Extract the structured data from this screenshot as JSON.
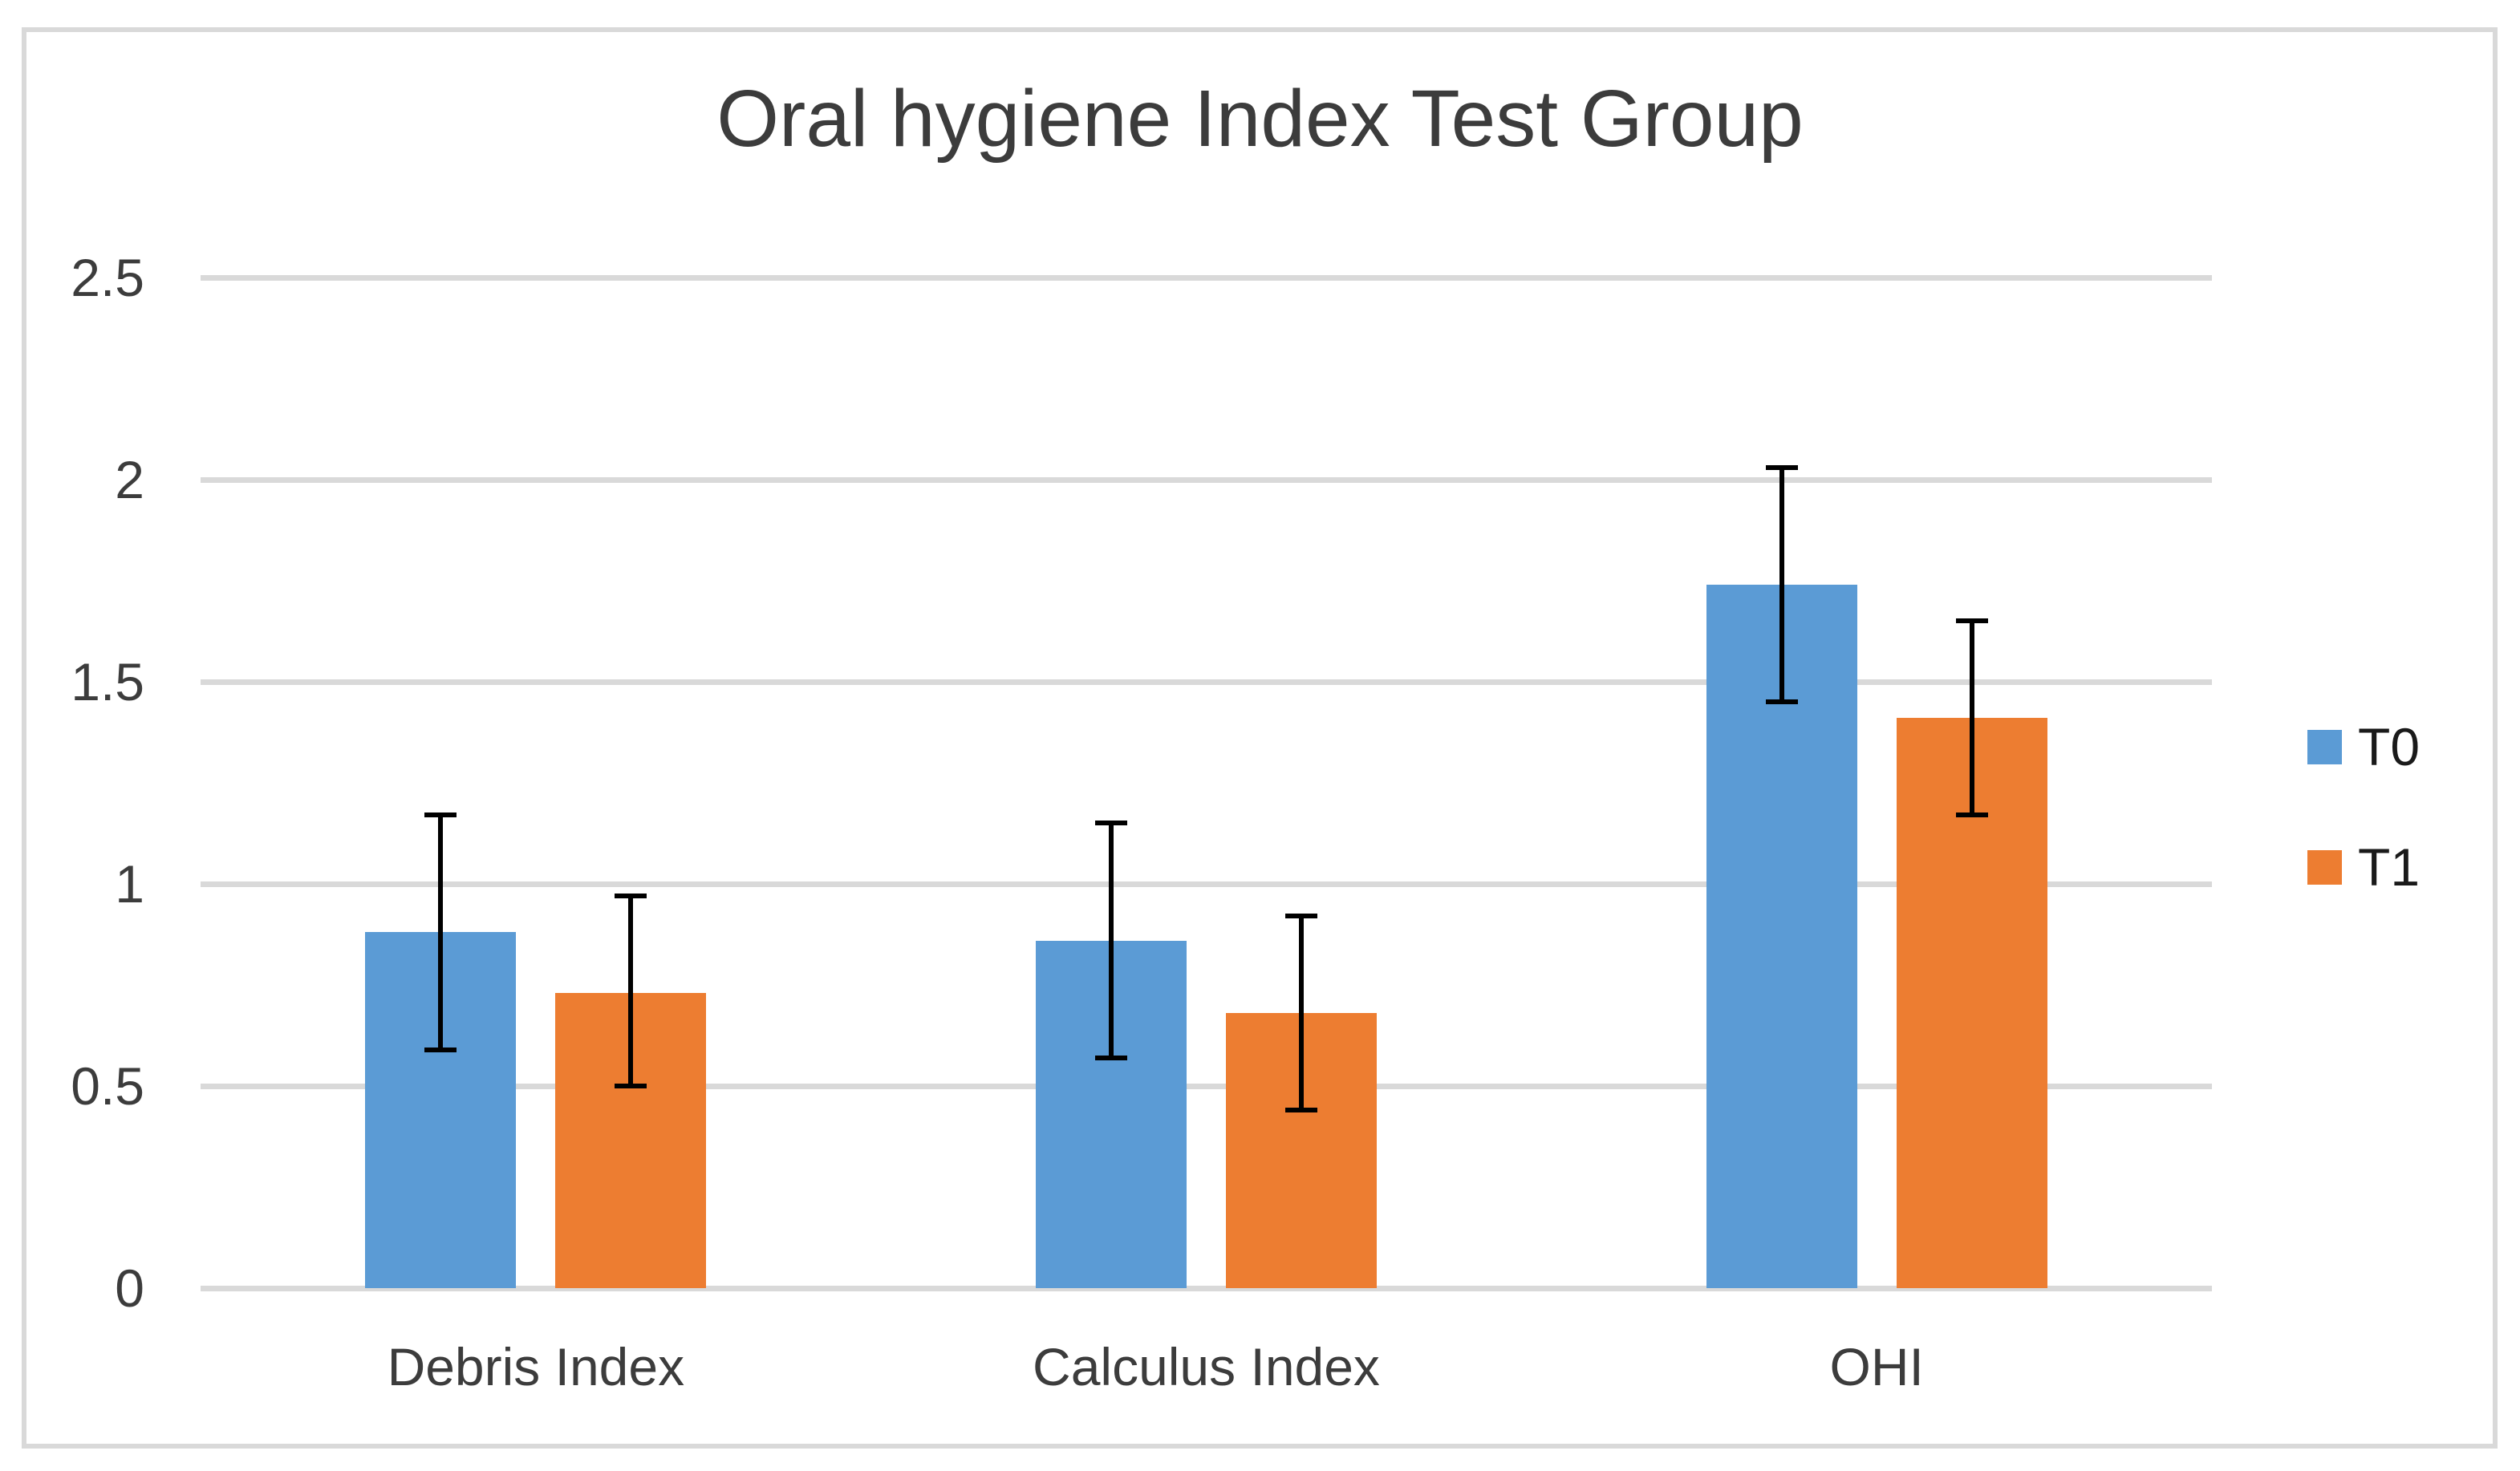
{
  "figure": {
    "background_color": "#FFFFFF",
    "border_color": "#D9D9D9",
    "text_color": "#3C3C3C"
  },
  "chart_data": {
    "type": "bar",
    "title": "Oral hygiene Index Test Group",
    "categories": [
      "Debris Index",
      "Calculus Index",
      "OHI"
    ],
    "series": [
      {
        "name": "T0",
        "color": "#5B9BD5",
        "values": [
          0.88,
          0.86,
          1.74
        ],
        "error_low": [
          0.59,
          0.57,
          1.45
        ],
        "error_high": [
          1.17,
          1.15,
          2.03
        ]
      },
      {
        "name": "T1",
        "color": "#ED7D31",
        "values": [
          0.73,
          0.68,
          1.41
        ],
        "error_low": [
          0.5,
          0.44,
          1.17
        ],
        "error_high": [
          0.97,
          0.92,
          1.65
        ]
      }
    ],
    "y_axis": {
      "min": 0,
      "max": 2.5,
      "tick_step": 0.5,
      "tick_labels": [
        "0",
        "0.5",
        "1",
        "1.5",
        "2",
        "2.5"
      ]
    },
    "x_axis_label": "",
    "y_axis_label": "",
    "grid": true,
    "gridline_color": "#D9D9D9",
    "error_bar_color": "#000000",
    "legend": {
      "position": "right",
      "entries": [
        "T0",
        "T1"
      ]
    }
  }
}
